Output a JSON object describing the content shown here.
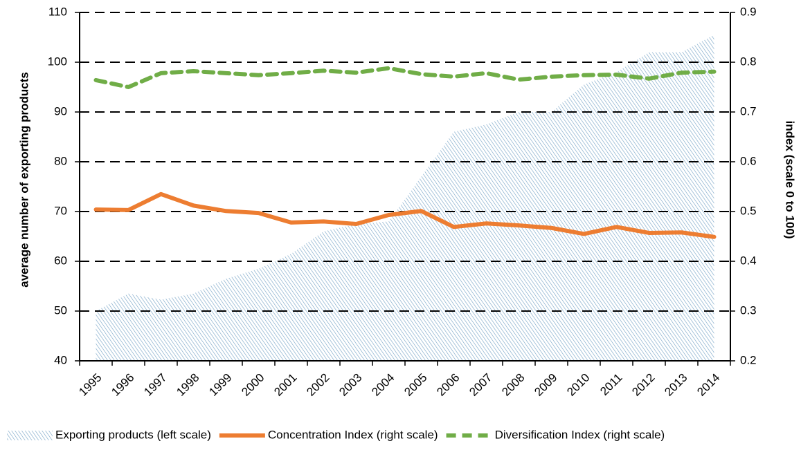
{
  "chart_data": {
    "type": "combo",
    "categories": [
      "1995",
      "1996",
      "1997",
      "1998",
      "1999",
      "2000",
      "2001",
      "2002",
      "2003",
      "2004",
      "2005",
      "2006",
      "2007",
      "2008",
      "2009",
      "2010",
      "2011",
      "2012",
      "2013",
      "2014"
    ],
    "ylabel": "average number of exporting products",
    "y2label": "index (scale 0 to 100)",
    "ylim": [
      40,
      110
    ],
    "yticks": [
      40,
      50,
      60,
      70,
      80,
      90,
      100,
      110
    ],
    "y2lim": [
      0.2,
      0.9
    ],
    "y2ticks": [
      0.2,
      0.3,
      0.4,
      0.5,
      0.6,
      0.7,
      0.8,
      0.9
    ],
    "grid": true,
    "legend": "bottom",
    "series": [
      {
        "name": "Exporting products (left scale)",
        "type": "area",
        "color": "#7aa6c8",
        "values": [
          50,
          53.5,
          52.3,
          53.5,
          56.5,
          58.5,
          61.5,
          66,
          67.5,
          68,
          77,
          86,
          87.5,
          90,
          90,
          95.5,
          98,
          102,
          102,
          105.5
        ]
      },
      {
        "name": "Concentration Index (right scale)",
        "type": "line",
        "axis": "y2",
        "color": "#ed7d31",
        "dashed": false,
        "values": [
          0.504,
          0.503,
          0.535,
          0.512,
          0.501,
          0.497,
          0.478,
          0.48,
          0.475,
          0.493,
          0.501,
          0.469,
          0.476,
          0.472,
          0.467,
          0.455,
          0.469,
          0.457,
          0.458,
          0.449
        ]
      },
      {
        "name": "Diversification Index (right scale)",
        "type": "line",
        "axis": "y2",
        "color": "#70ad47",
        "dashed": true,
        "values": [
          0.764,
          0.75,
          0.778,
          0.782,
          0.778,
          0.774,
          0.778,
          0.783,
          0.779,
          0.788,
          0.776,
          0.771,
          0.778,
          0.765,
          0.771,
          0.774,
          0.775,
          0.767,
          0.779,
          0.781
        ]
      }
    ]
  }
}
